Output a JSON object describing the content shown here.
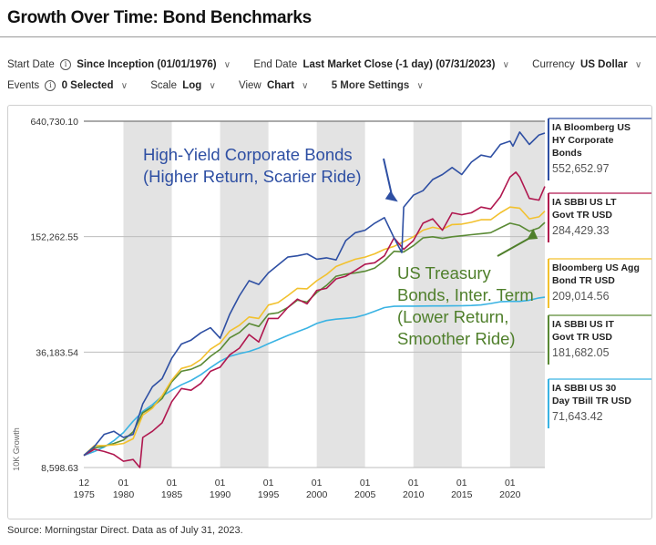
{
  "page": {
    "title": "Growth Over Time: Bond Benchmarks",
    "source": "Source: Morningstar Direct. Data as of July 31, 2023."
  },
  "controls": {
    "start_date": {
      "label": "Start Date",
      "value": "Since Inception (01/01/1976)"
    },
    "end_date": {
      "label": "End Date",
      "value": "Last Market Close (-1 day) (07/31/2023)"
    },
    "currency": {
      "label": "Currency",
      "value": "US Dollar"
    },
    "events": {
      "label": "Events",
      "value": "0 Selected"
    },
    "scale": {
      "label": "Scale",
      "value": "Log"
    },
    "view": {
      "label": "View",
      "value": "Chart"
    },
    "more_settings": "5 More Settings"
  },
  "icons": {
    "info": "info-circle-icon",
    "chevron": "chevron-down-icon"
  },
  "chart_data": {
    "type": "line",
    "ylabel": "10K Growth",
    "yscale": "log",
    "ylim": [
      8598.63,
      640730.1
    ],
    "yticks": [
      {
        "value": 8598.63,
        "label": "8,598.63"
      },
      {
        "value": 36183.54,
        "label": "36,183.54"
      },
      {
        "value": 152262.55,
        "label": "152,262.55"
      },
      {
        "value": 640730.1,
        "label": "640,730.10"
      }
    ],
    "xlim": [
      1975.9,
      2023.6
    ],
    "xticks": [
      {
        "value": 1975.92,
        "top": "12",
        "bottom": "1975"
      },
      {
        "value": 1980,
        "top": "01",
        "bottom": "1980"
      },
      {
        "value": 1985,
        "top": "01",
        "bottom": "1985"
      },
      {
        "value": 1990,
        "top": "01",
        "bottom": "1990"
      },
      {
        "value": 1995,
        "top": "01",
        "bottom": "1995"
      },
      {
        "value": 2000,
        "top": "01",
        "bottom": "2000"
      },
      {
        "value": 2005,
        "top": "01",
        "bottom": "2005"
      },
      {
        "value": 2010,
        "top": "01",
        "bottom": "2010"
      },
      {
        "value": 2015,
        "top": "01",
        "bottom": "2015"
      },
      {
        "value": 2020,
        "top": "01",
        "bottom": "2020"
      }
    ],
    "bands": [
      [
        1980,
        1985
      ],
      [
        1990,
        1995
      ],
      [
        2000,
        2005
      ],
      [
        2010,
        2015
      ],
      [
        2020,
        2023.6
      ]
    ],
    "grid": "horizontal",
    "legend_placement": "right",
    "series": [
      {
        "name": "IA Bloomberg US HY Corporate Bonds",
        "value_label": "552,652.97",
        "color": "#2e4fa3",
        "x": [
          1975.9,
          1977,
          1978,
          1979,
          1980,
          1981,
          1982,
          1983,
          1984,
          1985,
          1986,
          1987,
          1988,
          1989,
          1990,
          1991,
          1992,
          1993,
          1994,
          1995,
          1996,
          1997,
          1998,
          1999,
          2000,
          2001,
          2002,
          2003,
          2004,
          2005,
          2006,
          2007,
          2008,
          2008.8,
          2009,
          2010,
          2011,
          2012,
          2013,
          2014,
          2015,
          2016,
          2017,
          2018,
          2019,
          2020,
          2020.3,
          2021,
          2022,
          2023,
          2023.6
        ],
        "y": [
          10000,
          11200,
          13000,
          13500,
          12500,
          13000,
          19000,
          23500,
          26000,
          33500,
          40000,
          42000,
          46000,
          49000,
          43000,
          58000,
          73000,
          88000,
          84000,
          97000,
          107000,
          118000,
          120000,
          123000,
          115000,
          117000,
          114000,
          145000,
          160000,
          165000,
          180000,
          193000,
          150000,
          125000,
          220000,
          255000,
          270000,
          310000,
          330000,
          360000,
          330000,
          385000,
          420000,
          410000,
          480000,
          500000,
          470000,
          560000,
          480000,
          540000,
          552652.97
        ]
      },
      {
        "name": "IA SBBI US LT Govt TR USD",
        "value_label": "284,429.33",
        "color": "#b0174f",
        "x": [
          1975.9,
          1977,
          1978,
          1979,
          1980,
          1981,
          1981.7,
          1982,
          1983,
          1984,
          1985,
          1986,
          1987,
          1988,
          1989,
          1990,
          1991,
          1992,
          1993,
          1994,
          1995,
          1996,
          1997,
          1998,
          1999,
          2000,
          2001,
          2002,
          2003,
          2004,
          2005,
          2006,
          2007,
          2008,
          2009,
          2010,
          2011,
          2012,
          2013,
          2014,
          2015,
          2016,
          2017,
          2018,
          2019,
          2020,
          2020.6,
          2021,
          2022,
          2023,
          2023.6
        ],
        "y": [
          10000,
          10800,
          10500,
          10100,
          9300,
          9500,
          8598.63,
          12500,
          13500,
          15000,
          19500,
          23000,
          22500,
          24500,
          28500,
          30000,
          35000,
          38000,
          45000,
          41000,
          55000,
          55000,
          63000,
          70000,
          66000,
          78000,
          80000,
          90000,
          93000,
          100000,
          108000,
          110000,
          120000,
          150000,
          130000,
          145000,
          180000,
          190000,
          165000,
          205000,
          200000,
          205000,
          220000,
          215000,
          250000,
          320000,
          340000,
          320000,
          245000,
          240000,
          284429.33
        ]
      },
      {
        "name": "Bloomberg US Agg Bond TR USD",
        "value_label": "209,014.56",
        "color": "#f2c12e",
        "x": [
          1975.9,
          1977,
          1978,
          1979,
          1980,
          1981,
          1982,
          1983,
          1984,
          1985,
          1986,
          1987,
          1988,
          1989,
          1990,
          1991,
          1992,
          1993,
          1994,
          1995,
          1996,
          1997,
          1998,
          1999,
          2000,
          2001,
          2002,
          2003,
          2004,
          2005,
          2006,
          2007,
          2008,
          2009,
          2010,
          2011,
          2012,
          2013,
          2014,
          2015,
          2016,
          2017,
          2018,
          2019,
          2020,
          2021,
          2022,
          2023,
          2023.6
        ],
        "y": [
          10000,
          11300,
          11300,
          11400,
          11600,
          12300,
          16500,
          18000,
          21000,
          25500,
          29500,
          30500,
          33000,
          37500,
          40500,
          47000,
          50500,
          56000,
          55000,
          65000,
          67000,
          73000,
          80000,
          79500,
          88000,
          95000,
          105000,
          110000,
          115000,
          118000,
          123000,
          130000,
          135000,
          143000,
          152000,
          165000,
          171000,
          167000,
          177000,
          178000,
          182000,
          188000,
          188000,
          205000,
          220000,
          217000,
          190000,
          195000,
          209014.56
        ]
      },
      {
        "name": "IA SBBI US IT Govt TR USD",
        "value_label": "181,682.05",
        "color": "#5a8a35",
        "x": [
          1975.9,
          1977,
          1978,
          1979,
          1980,
          1981,
          1982,
          1983,
          1984,
          1985,
          1986,
          1987,
          1988,
          1989,
          1990,
          1991,
          1992,
          1993,
          1994,
          1995,
          1996,
          1997,
          1998,
          1999,
          2000,
          2001,
          2002,
          2003,
          2004,
          2005,
          2006,
          2007,
          2008,
          2009,
          2010,
          2011,
          2012,
          2013,
          2014,
          2015,
          2016,
          2017,
          2018,
          2019,
          2020,
          2021,
          2022,
          2023,
          2023.6
        ],
        "y": [
          10000,
          11000,
          11200,
          11600,
          12100,
          13400,
          17000,
          18300,
          20300,
          25000,
          28500,
          29200,
          30800,
          34300,
          37400,
          43200,
          46200,
          51600,
          49800,
          58000,
          59000,
          63000,
          69000,
          67500,
          76000,
          83000,
          93000,
          95500,
          97000,
          99000,
          103000,
          113000,
          127000,
          126000,
          136000,
          150000,
          152000,
          149000,
          152000,
          154000,
          156000,
          158000,
          160000,
          170000,
          180000,
          175000,
          163000,
          170000,
          181682.05
        ]
      },
      {
        "name": "IA SBBI US 30 Day TBill TR USD",
        "value_label": "71,643.42",
        "color": "#3ab3e3",
        "x": [
          1975.9,
          1977,
          1978,
          1979,
          1980,
          1981,
          1982,
          1983,
          1984,
          1985,
          1986,
          1987,
          1988,
          1989,
          1990,
          1991,
          1992,
          1993,
          1994,
          1995,
          1996,
          1997,
          1998,
          1999,
          2000,
          2001,
          2002,
          2003,
          2004,
          2005,
          2006,
          2007,
          2008,
          2009,
          2010,
          2011,
          2012,
          2013,
          2014,
          2015,
          2016,
          2017,
          2018,
          2019,
          2020,
          2021,
          2022,
          2023,
          2023.6
        ],
        "y": [
          10000,
          10500,
          11100,
          12000,
          13300,
          15300,
          17300,
          18800,
          20900,
          22500,
          24100,
          25400,
          27300,
          29800,
          32300,
          34300,
          35500,
          36500,
          38000,
          40200,
          42300,
          44500,
          46600,
          48800,
          51700,
          53600,
          54500,
          55100,
          55800,
          57600,
          60200,
          63000,
          64000,
          64100,
          64150,
          64200,
          64250,
          64300,
          64350,
          64400,
          64600,
          65100,
          66300,
          67700,
          68000,
          68050,
          69000,
          71000,
          71643.42
        ]
      }
    ],
    "annotations": [
      {
        "text": [
          "High-Yield Corporate Bonds",
          "(Higher Return, Scarier Ride)"
        ],
        "color": "#2e4fa3",
        "target_x": 2008.4,
        "target_y": 235000
      },
      {
        "text": [
          "US Treasury",
          "Bonds, Inter. Term",
          "(Lower Return,",
          "Smoother Ride)"
        ],
        "color": "#4f7f2b",
        "target_x": 2022.4,
        "target_y": 168000
      }
    ]
  }
}
